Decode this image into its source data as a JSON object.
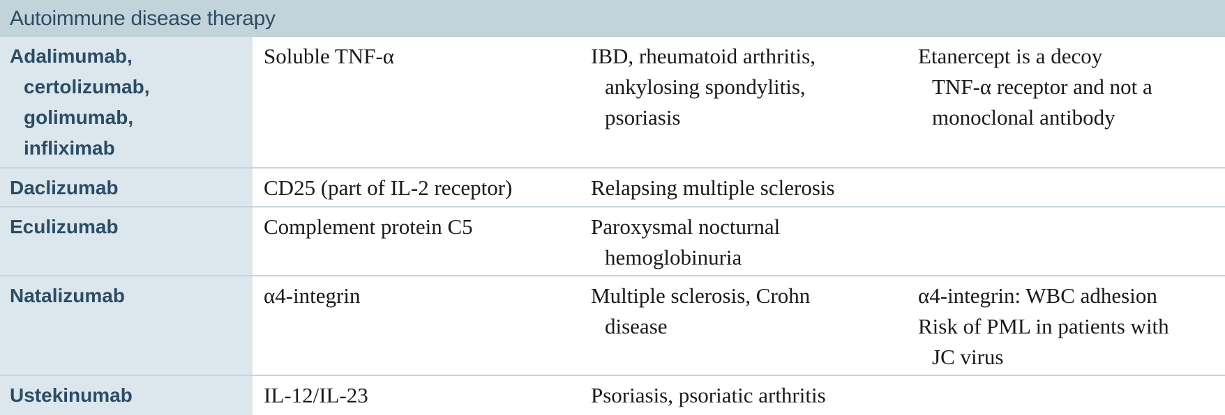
{
  "section": {
    "title": "Autoimmune disease therapy"
  },
  "rows": [
    {
      "drug": [
        "Adalimumab,",
        "certolizumab,",
        "golimumab,",
        "infliximab"
      ],
      "target": [
        "Soluble TNF-α"
      ],
      "use": [
        "IBD, rheumatoid arthritis,",
        "ankylosing spondylitis,",
        "psoriasis"
      ],
      "notes": [
        "Etanercept is a decoy",
        "TNF-α receptor and not a",
        "monoclonal antibody"
      ]
    },
    {
      "drug": [
        "Daclizumab"
      ],
      "target": [
        "CD25 (part of IL-2 receptor)"
      ],
      "use": [
        "Relapsing multiple sclerosis"
      ],
      "notes": []
    },
    {
      "drug": [
        "Eculizumab"
      ],
      "target": [
        "Complement protein C5"
      ],
      "use": [
        "Paroxysmal nocturnal",
        "hemoglobinuria"
      ],
      "notes": []
    },
    {
      "drug": [
        "Natalizumab"
      ],
      "target": [
        "α4-integrin"
      ],
      "use": [
        "Multiple sclerosis, Crohn",
        "disease"
      ],
      "notes": [
        "α4-integrin: WBC adhesion",
        "Risk of PML in patients with",
        "JC virus"
      ]
    },
    {
      "drug": [
        "Ustekinumab"
      ],
      "target": [
        "IL-12/IL-23"
      ],
      "use": [
        "Psoriasis, psoriatic arthritis"
      ],
      "notes": []
    }
  ]
}
